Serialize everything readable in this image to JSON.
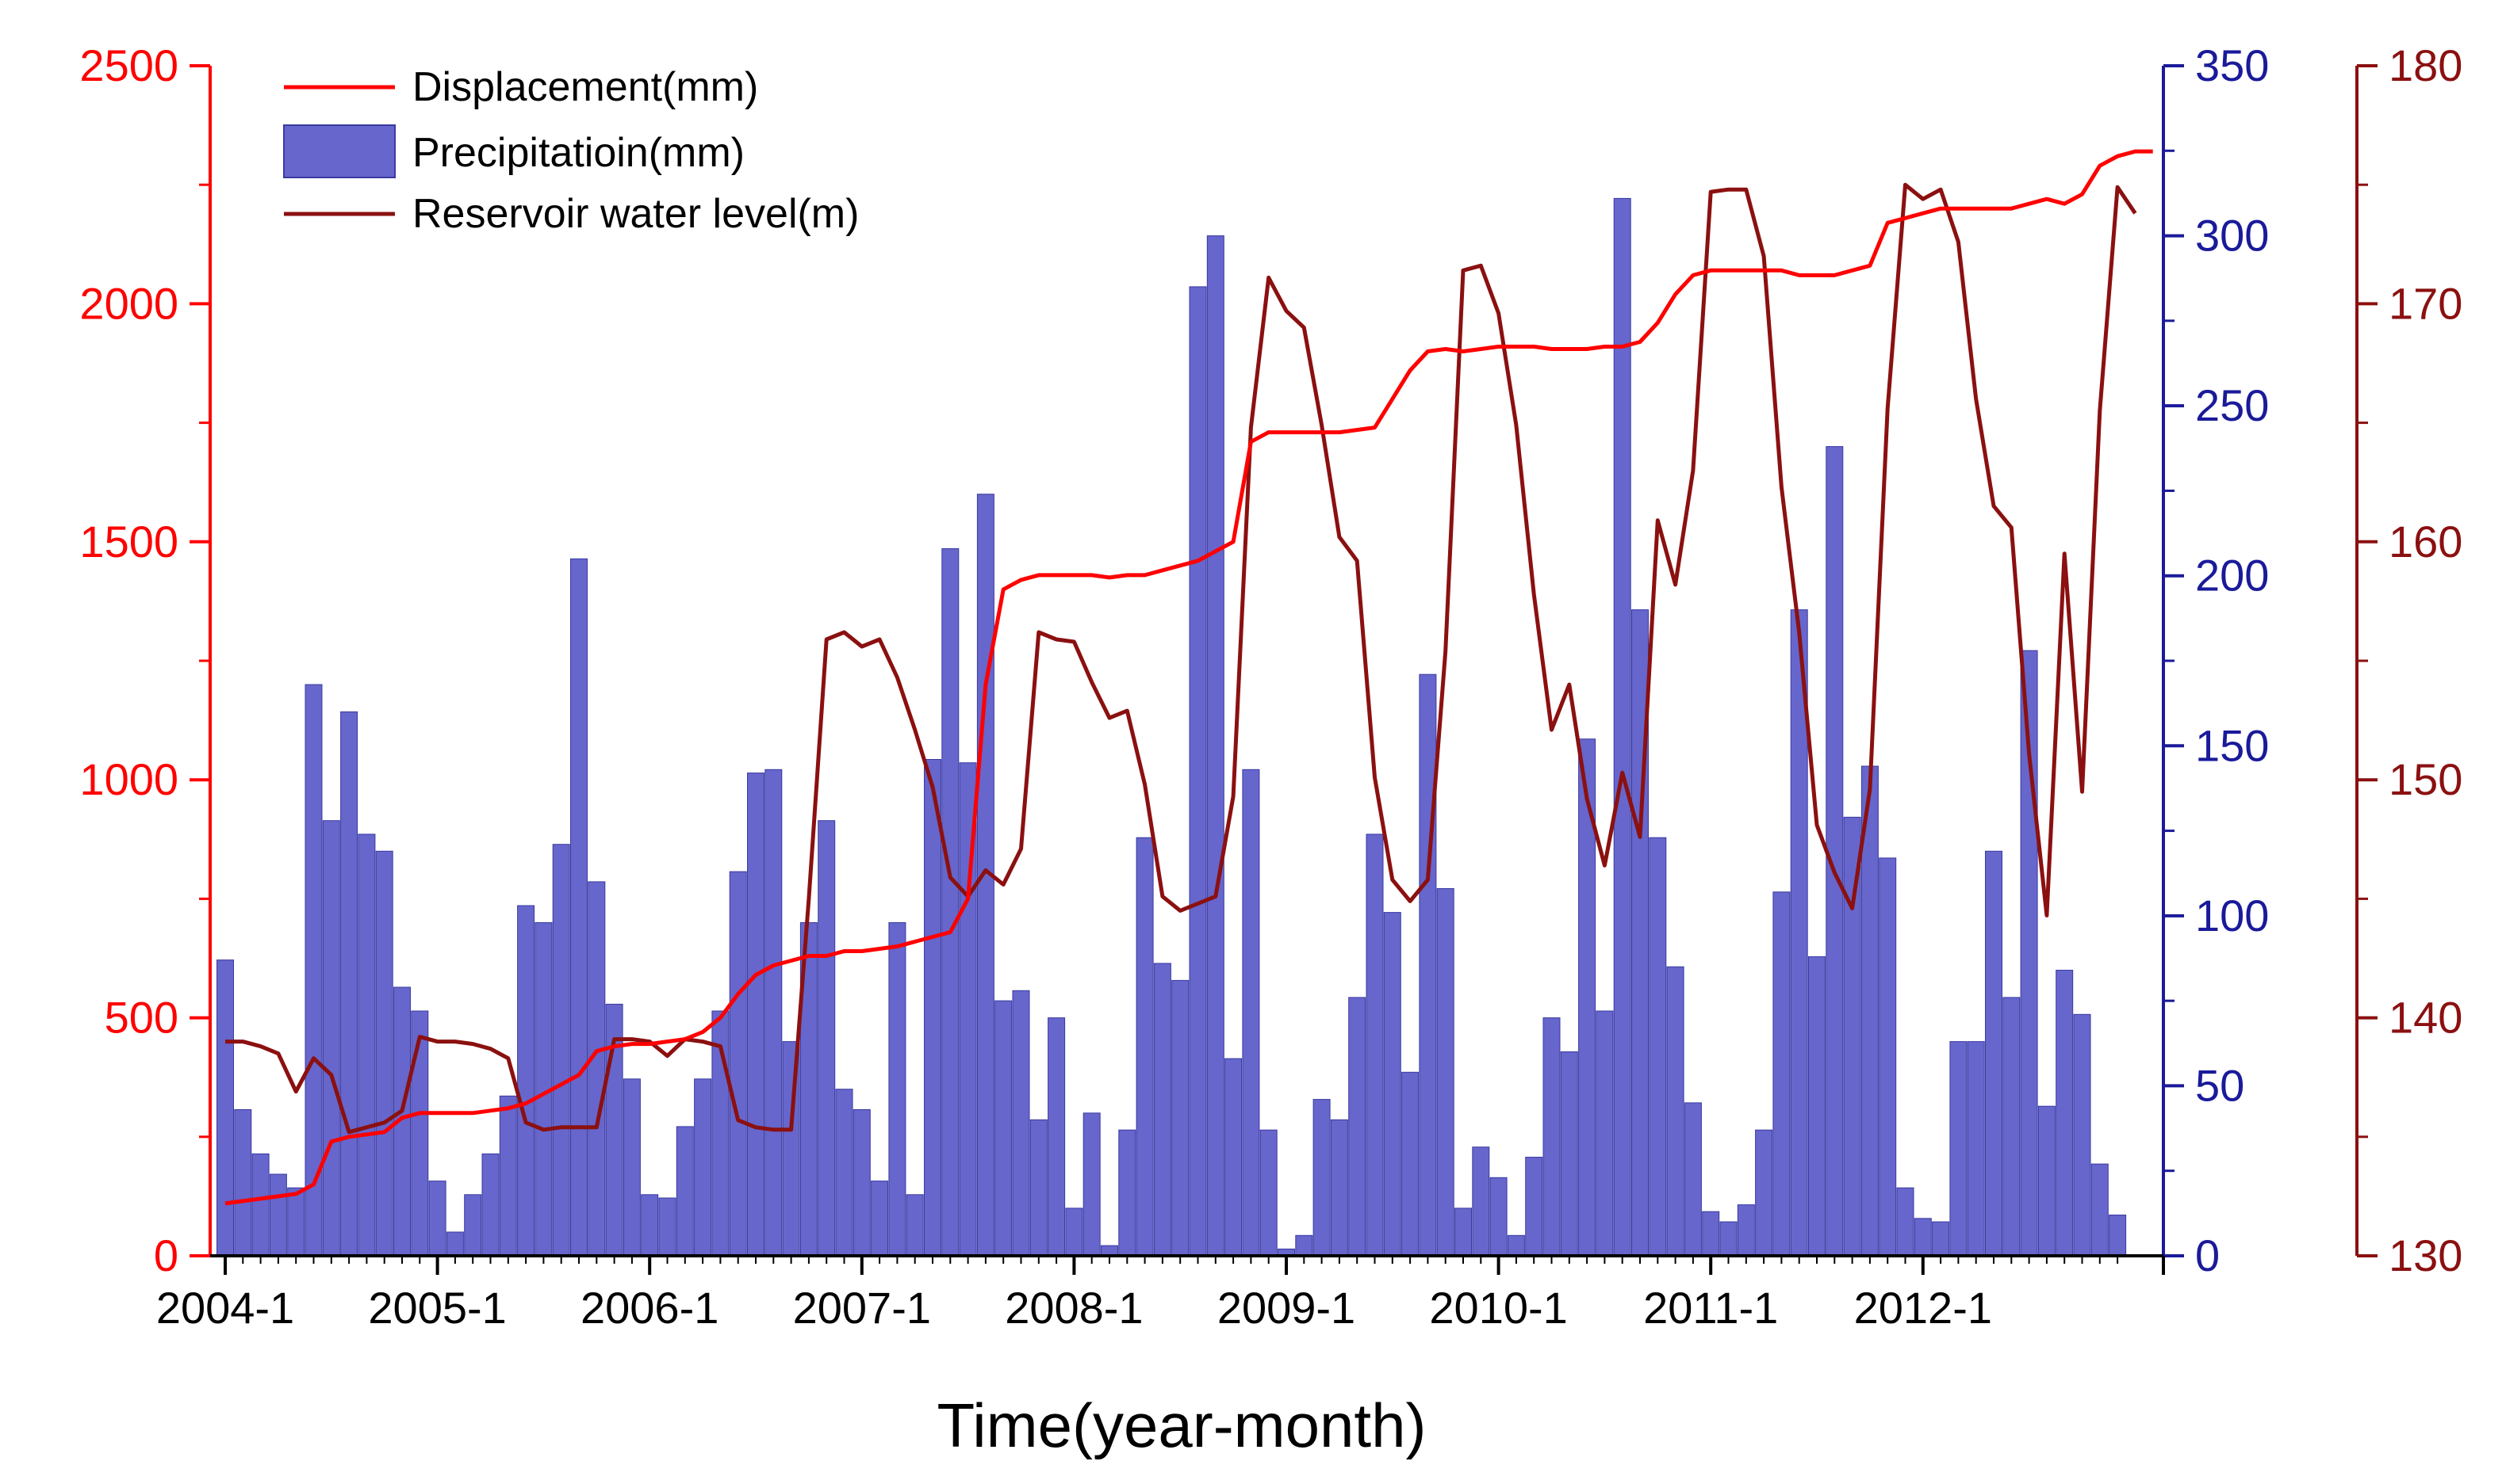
{
  "chart_data": {
    "type": "bar+line",
    "title": "",
    "xlabel": "Time(year-month)",
    "x_tick_labels": [
      "2004-1",
      "2005-1",
      "2006-1",
      "2007-1",
      "2008-1",
      "2009-1",
      "2010-1",
      "2011-1",
      "2012-1"
    ],
    "start": "2004-1",
    "months": 108,
    "axes": {
      "displacement": {
        "ylim": [
          0,
          2500
        ],
        "ticks": [
          "0",
          "500",
          "1000",
          "1500",
          "2000",
          "2500"
        ],
        "color": "#ff0000",
        "side": "left"
      },
      "precipitation": {
        "ylim": [
          0,
          350
        ],
        "ticks": [
          "0",
          "50",
          "100",
          "150",
          "200",
          "250",
          "300",
          "350"
        ],
        "color": "#1a1a9a",
        "side": "right-inner"
      },
      "water_level": {
        "ylim": [
          130,
          180
        ],
        "ticks": [
          "130",
          "140",
          "150",
          "160",
          "170",
          "180"
        ],
        "color": "#8b1010",
        "side": "right-outer"
      }
    },
    "legend": {
      "position": "top-left",
      "entries": [
        "Displacement(mm)",
        "Precipitatioin(mm)",
        "Reservoir water level(m)"
      ]
    },
    "series": [
      {
        "name": "Displacement(mm)",
        "type": "line",
        "axis": "displacement",
        "color": "#ff0000",
        "values": [
          110,
          115,
          120,
          125,
          130,
          150,
          240,
          250,
          255,
          260,
          290,
          300,
          300,
          300,
          300,
          305,
          310,
          320,
          340,
          360,
          380,
          430,
          440,
          445,
          445,
          450,
          455,
          470,
          500,
          550,
          590,
          610,
          620,
          630,
          630,
          640,
          640,
          645,
          650,
          660,
          670,
          680,
          750,
          1200,
          1400,
          1420,
          1430,
          1430,
          1430,
          1430,
          1425,
          1430,
          1430,
          1440,
          1450,
          1460,
          1480,
          1500,
          1710,
          1730,
          1730,
          1730,
          1730,
          1730,
          1735,
          1740,
          1800,
          1860,
          1900,
          1905,
          1900,
          1905,
          1910,
          1910,
          1910,
          1905,
          1905,
          1905,
          1910,
          1910,
          1920,
          1960,
          2020,
          2060,
          2070,
          2070,
          2070,
          2070,
          2070,
          2060,
          2060,
          2060,
          2070,
          2080,
          2170,
          2180,
          2190,
          2200,
          2200,
          2200,
          2200,
          2200,
          2210,
          2220,
          2210,
          2230,
          2290,
          2310,
          2320,
          2320
        ]
      },
      {
        "name": "Precipitatioin(mm)",
        "type": "bar",
        "axis": "precipitation",
        "color": "#6666cc",
        "values": [
          87,
          43,
          30,
          24,
          20,
          168,
          128,
          160,
          124,
          119,
          79,
          72,
          22,
          7,
          18,
          30,
          47,
          103,
          98,
          121,
          205,
          110,
          74,
          52,
          18,
          17,
          38,
          52,
          72,
          113,
          142,
          143,
          63,
          98,
          128,
          49,
          43,
          22,
          98,
          18,
          146,
          208,
          145,
          224,
          75,
          78,
          40,
          70,
          14,
          42,
          3,
          37,
          123,
          86,
          81,
          285,
          300,
          58,
          143,
          37,
          2,
          6,
          46,
          40,
          76,
          124,
          101,
          54,
          171,
          108,
          14,
          32,
          23,
          6,
          29,
          70,
          60,
          152,
          72,
          311,
          190,
          123,
          85,
          45,
          13,
          10,
          15,
          37,
          107,
          190,
          88,
          238,
          129,
          144,
          117,
          20,
          11,
          10,
          63,
          63,
          119,
          76,
          178,
          44,
          84,
          71,
          27,
          12
        ]
      },
      {
        "name": "Reservoir water level(m)",
        "type": "line",
        "axis": "water_level",
        "color": "#8b1010",
        "values": [
          139,
          139,
          138.8,
          138.5,
          136.9,
          138.3,
          137.6,
          135.2,
          135.4,
          135.6,
          136.1,
          139.2,
          139,
          139,
          138.9,
          138.7,
          138.3,
          135.6,
          135.3,
          135.4,
          135.4,
          135.4,
          139.1,
          139.1,
          139,
          138.4,
          139.1,
          139,
          138.8,
          135.7,
          135.4,
          135.3,
          135.3,
          145,
          155.9,
          156.2,
          155.6,
          155.9,
          154.3,
          152.1,
          149.7,
          145.9,
          145.1,
          146.2,
          145.6,
          147.1,
          156.2,
          155.9,
          155.8,
          154.1,
          152.6,
          152.9,
          149.8,
          145.1,
          144.5,
          144.8,
          145.1,
          149.3,
          164.8,
          171.1,
          169.7,
          169,
          164.9,
          160.2,
          159.2,
          150.1,
          145.8,
          144.9,
          145.8,
          155.4,
          171.4,
          171.6,
          169.6,
          164.9,
          157.8,
          152.1,
          154,
          149.2,
          146.4,
          150.3,
          147.6,
          160.9,
          158.2,
          163,
          174.7,
          174.8,
          174.8,
          172,
          162.3,
          156.2,
          148.1,
          146.1,
          144.6,
          149.6,
          165.6,
          175,
          174.4,
          174.8,
          172.6,
          166,
          161.5,
          160.6,
          151.1,
          144.3,
          159.5,
          149.5,
          165.5,
          174.9,
          173.8
        ]
      }
    ]
  }
}
